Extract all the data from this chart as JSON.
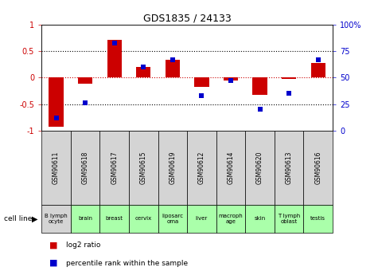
{
  "title": "GDS1835 / 24133",
  "samples": [
    "GSM90611",
    "GSM90618",
    "GSM90617",
    "GSM90615",
    "GSM90619",
    "GSM90612",
    "GSM90614",
    "GSM90620",
    "GSM90613",
    "GSM90616"
  ],
  "cell_lines": [
    "B lymph\nocyte",
    "brain",
    "breast",
    "cervix",
    "liposarc\noma",
    "liver",
    "macroph\nage",
    "skin",
    "T lymph\noblast",
    "testis"
  ],
  "cell_colors": [
    "#d4d4d4",
    "#aaffaa",
    "#aaffaa",
    "#aaffaa",
    "#aaffaa",
    "#aaffaa",
    "#aaffaa",
    "#aaffaa",
    "#aaffaa",
    "#aaffaa"
  ],
  "gsm_row_color": "#d4d4d4",
  "log2_ratio": [
    -0.92,
    -0.12,
    0.72,
    0.2,
    0.34,
    -0.18,
    -0.05,
    -0.32,
    -0.03,
    0.28
  ],
  "percentile_rank": [
    12,
    26,
    83,
    60,
    67,
    33,
    47,
    20,
    35,
    67
  ],
  "ylim": [
    -1,
    1
  ],
  "y2lim": [
    0,
    100
  ],
  "bar_color_red": "#cc0000",
  "bar_color_blue": "#0000cc",
  "bg_color": "#ffffff",
  "zero_line_color": "#cc0000",
  "dotted_line_color": "#000000"
}
